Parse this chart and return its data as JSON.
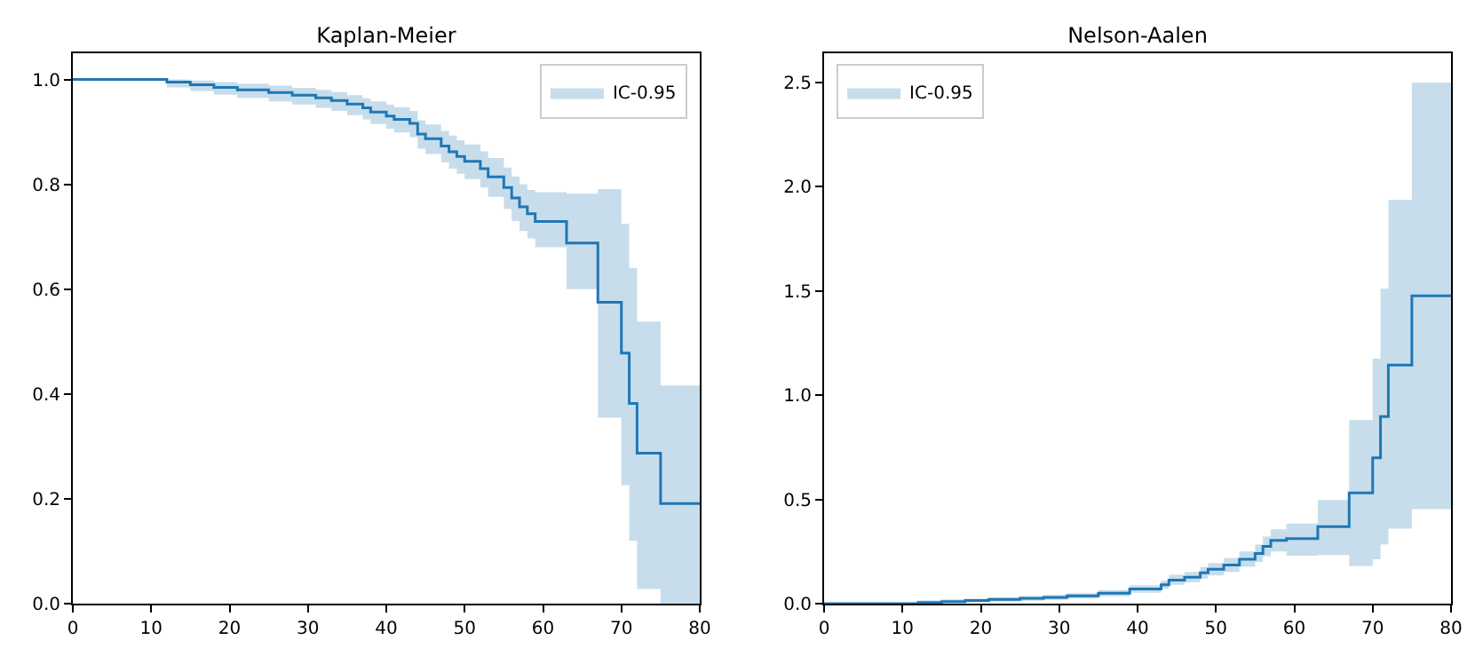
{
  "chart_data": [
    {
      "type": "step",
      "title": "Kaplan-Meier",
      "legend": "top right",
      "grid": false,
      "xlim": [
        0,
        80
      ],
      "xticks": [
        0,
        10,
        20,
        30,
        40,
        50,
        60,
        70,
        80
      ],
      "ylim": [
        0,
        1.05
      ],
      "yticks": [
        {
          "value": 0,
          "label": "0.0"
        },
        0.2,
        0.4,
        0.6,
        0.8,
        {
          "value": 1,
          "label": "1.0"
        }
      ],
      "series": [
        {
          "name": "IC-0.95",
          "color": "#1f77b4",
          "x": [
            0,
            12,
            15,
            18,
            21,
            25,
            28,
            31,
            33,
            35,
            37,
            38,
            40,
            41,
            43,
            44,
            45,
            47,
            48,
            49,
            50,
            52,
            53,
            55,
            56,
            57,
            58,
            59,
            63,
            67,
            70,
            71,
            72,
            75,
            80
          ],
          "values": [
            1.0,
            0.995,
            0.99,
            0.985,
            0.98,
            0.975,
            0.97,
            0.965,
            0.96,
            0.953,
            0.946,
            0.938,
            0.93,
            0.924,
            0.916,
            0.896,
            0.887,
            0.873,
            0.862,
            0.853,
            0.844,
            0.83,
            0.814,
            0.794,
            0.774,
            0.757,
            0.744,
            0.729,
            0.688,
            0.575,
            0.478,
            0.382,
            0.287,
            0.191,
            0.191
          ],
          "lower": [
            1.0,
            0.985,
            0.978,
            0.971,
            0.965,
            0.958,
            0.952,
            0.946,
            0.94,
            0.932,
            0.924,
            0.915,
            0.906,
            0.899,
            0.89,
            0.868,
            0.858,
            0.842,
            0.83,
            0.82,
            0.81,
            0.794,
            0.776,
            0.753,
            0.73,
            0.711,
            0.697,
            0.68,
            0.6,
            0.355,
            0.226,
            0.12,
            0.028,
            0.0,
            0.0
          ],
          "upper": [
            1.0,
            1.0,
            0.998,
            0.995,
            0.992,
            0.988,
            0.984,
            0.98,
            0.976,
            0.97,
            0.964,
            0.958,
            0.952,
            0.947,
            0.94,
            0.922,
            0.914,
            0.902,
            0.893,
            0.884,
            0.876,
            0.863,
            0.85,
            0.832,
            0.815,
            0.8,
            0.789,
            0.785,
            0.782,
            0.791,
            0.725,
            0.64,
            0.538,
            0.416,
            0.416
          ]
        }
      ]
    },
    {
      "type": "step",
      "title": "Nelson-Aalen",
      "legend": "top left",
      "grid": false,
      "xlim": [
        0,
        80
      ],
      "xticks": [
        0,
        10,
        20,
        30,
        40,
        50,
        60,
        70,
        80
      ],
      "ylim": [
        0,
        2.64
      ],
      "yticks": [
        {
          "value": 0,
          "label": "0.0"
        },
        0.5,
        {
          "value": 1,
          "label": "1.0"
        },
        1.5,
        {
          "value": 2,
          "label": "2.0"
        },
        2.5
      ],
      "series": [
        {
          "name": "IC-0.95",
          "color": "#1f77b4",
          "x": [
            0,
            12,
            15,
            18,
            21,
            25,
            28,
            31,
            35,
            39,
            43,
            44,
            46,
            48,
            49,
            51,
            53,
            55,
            56,
            57,
            59,
            63,
            67,
            70,
            71,
            72,
            75,
            80
          ],
          "values": [
            0,
            0.005,
            0.01,
            0.015,
            0.02,
            0.025,
            0.03,
            0.037,
            0.05,
            0.07,
            0.09,
            0.113,
            0.127,
            0.148,
            0.165,
            0.185,
            0.213,
            0.241,
            0.275,
            0.303,
            0.312,
            0.369,
            0.531,
            0.699,
            0.897,
            1.144,
            1.476,
            1.476
          ],
          "lower": [
            0,
            0,
            0.002,
            0.006,
            0.01,
            0.014,
            0.018,
            0.024,
            0.035,
            0.052,
            0.07,
            0.09,
            0.102,
            0.12,
            0.135,
            0.152,
            0.177,
            0.2,
            0.228,
            0.25,
            0.23,
            0.233,
            0.18,
            0.213,
            0.284,
            0.36,
            0.454,
            0.454
          ],
          "upper": [
            0,
            0.015,
            0.02,
            0.024,
            0.03,
            0.036,
            0.042,
            0.05,
            0.065,
            0.088,
            0.11,
            0.138,
            0.152,
            0.176,
            0.195,
            0.218,
            0.25,
            0.283,
            0.322,
            0.357,
            0.384,
            0.497,
            0.88,
            1.175,
            1.511,
            1.936,
            2.499,
            2.499
          ]
        }
      ]
    }
  ]
}
